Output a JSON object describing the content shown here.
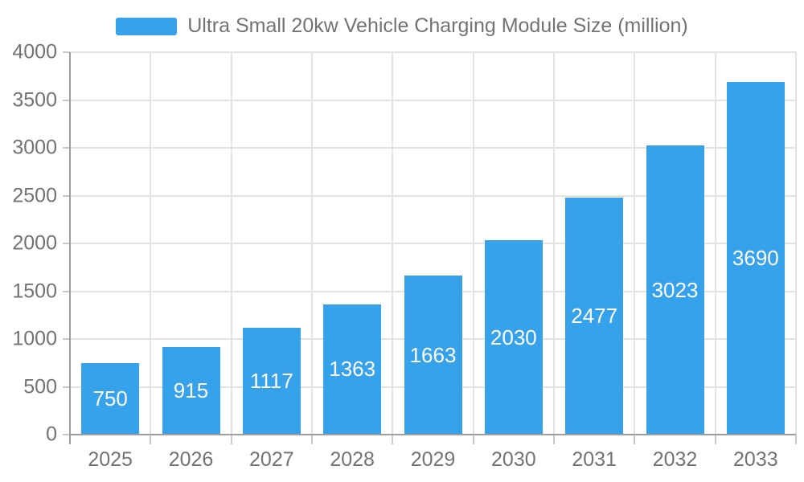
{
  "chart_data": {
    "type": "bar",
    "title": "Ultra Small 20kw Vehicle Charging Module Size (million)",
    "categories": [
      "2025",
      "2026",
      "2027",
      "2028",
      "2029",
      "2030",
      "2031",
      "2032",
      "2033"
    ],
    "series": [
      {
        "name": "Ultra Small 20kw Vehicle Charging Module Size (million)",
        "values": [
          750,
          915,
          1117,
          1363,
          1663,
          2030,
          2477,
          3023,
          3690
        ]
      }
    ],
    "xlabel": "",
    "ylabel": "",
    "ylim": [
      0,
      4000
    ],
    "ytick_step": 500,
    "ytick_labels": [
      "0",
      "500",
      "1000",
      "1500",
      "2000",
      "2500",
      "3000",
      "3500",
      "4000"
    ],
    "grid": true,
    "legend_position": "top",
    "value_label_position": "center",
    "colors": {
      "bar": "#36A2EB",
      "axis_line": "#9E9E9E",
      "tick_line": "#C9C9C9",
      "grid_line": "#E3E3E3",
      "tick_label": "#737373",
      "legend_text": "#737373",
      "value_label": "#FFFFFF",
      "background": "#FFFFFF"
    }
  }
}
